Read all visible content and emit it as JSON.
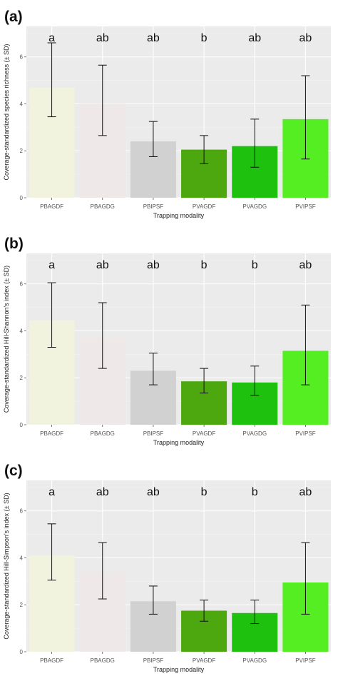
{
  "colors": {
    "panel_bg": "#ebebeb",
    "grid_major": "#ffffff",
    "bar_colors": [
      "#f1f3df",
      "#eee8e8",
      "#d1d1d1",
      "#4ca80e",
      "#1ec20e",
      "#55ee22"
    ]
  },
  "chart_data": [
    {
      "type": "bar",
      "panel_label": "(a)",
      "categories": [
        "PBAGDF",
        "PBAGDG",
        "PBIPSF",
        "PVAGDF",
        "PVAGDG",
        "PVIPSF"
      ],
      "values": [
        4.7,
        4.0,
        2.4,
        2.05,
        2.2,
        3.35
      ],
      "error_low": [
        3.45,
        2.65,
        1.75,
        1.45,
        1.3,
        1.65
      ],
      "error_high": [
        6.6,
        5.65,
        3.25,
        2.65,
        3.35,
        5.2
      ],
      "significance": [
        "a",
        "ab",
        "ab",
        "b",
        "ab",
        "ab"
      ],
      "xlabel": "Trapping modality",
      "ylabel": "Coverage-standardized species richness (± SD)",
      "yticks": [
        0,
        2,
        4,
        6
      ],
      "ylim": [
        0,
        7.3
      ],
      "grid": true
    },
    {
      "type": "bar",
      "panel_label": "(b)",
      "categories": [
        "PBAGDF",
        "PBAGDG",
        "PBIPSF",
        "PVAGDF",
        "PVAGDG",
        "PVIPSF"
      ],
      "values": [
        4.45,
        3.7,
        2.3,
        1.85,
        1.8,
        3.15
      ],
      "error_low": [
        3.3,
        2.4,
        1.7,
        1.35,
        1.25,
        1.7
      ],
      "error_high": [
        6.05,
        5.2,
        3.05,
        2.4,
        2.5,
        5.1
      ],
      "significance": [
        "a",
        "ab",
        "ab",
        "b",
        "b",
        "ab"
      ],
      "xlabel": "Trapping modality",
      "ylabel": "Coverage-standardized Hill-Shannon's index (± SD)",
      "yticks": [
        0,
        2,
        4,
        6
      ],
      "ylim": [
        0,
        7.3
      ],
      "grid": true
    },
    {
      "type": "bar",
      "panel_label": "(c)",
      "categories": [
        "PBAGDF",
        "PBAGDG",
        "PBIPSF",
        "PVAGDF",
        "PVAGDG",
        "PVIPSF"
      ],
      "values": [
        4.1,
        3.4,
        2.15,
        1.75,
        1.65,
        2.95
      ],
      "error_low": [
        3.05,
        2.25,
        1.6,
        1.3,
        1.2,
        1.6
      ],
      "error_high": [
        5.45,
        4.65,
        2.8,
        2.2,
        2.2,
        4.65
      ],
      "significance": [
        "a",
        "ab",
        "ab",
        "b",
        "b",
        "ab"
      ],
      "xlabel": "Trapping modality",
      "ylabel": "Coverage-standardized Hill-Simpson's index (± SD)",
      "yticks": [
        0,
        2,
        4,
        6
      ],
      "ylim": [
        0,
        7.3
      ],
      "grid": true
    }
  ]
}
